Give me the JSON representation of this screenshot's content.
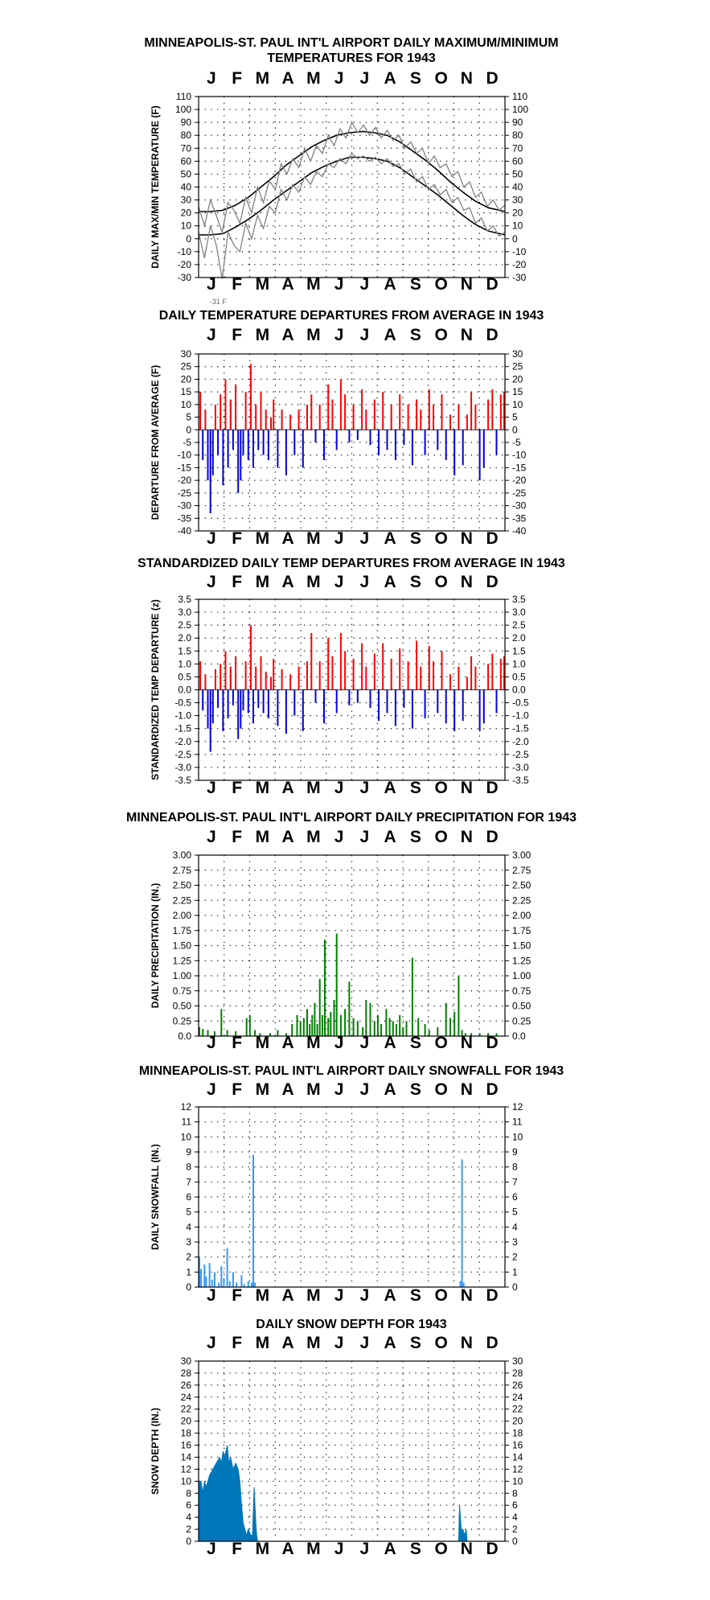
{
  "page": {
    "background": "#ffffff"
  },
  "colors": {
    "frame": "#000000",
    "grid_dot": "#000000",
    "maxmin_line": "#808080",
    "normal_line": "#000000",
    "positive_bar": "#ff0000",
    "negative_bar": "#0000dd",
    "precip_bar": "#008000",
    "snowfall_bar": "#3399ff",
    "snow_depth_fill": "#0077bb"
  },
  "month_labels": [
    "J",
    "F",
    "M",
    "A",
    "M",
    "J",
    "J",
    "A",
    "S",
    "O",
    "N",
    "D"
  ],
  "chart_data": [
    {
      "type": "line",
      "title": "MINNEAPOLIS-ST. PAUL INT'L AIRPORT DAILY MAXIMUM/MINIMUM TEMPERATURES FOR 1943",
      "ylabel": "DAILY MAX/MIN TEMPERATURE (F)",
      "ylim": [
        -30,
        110
      ],
      "yticks": [
        110,
        100,
        90,
        80,
        70,
        60,
        50,
        40,
        30,
        20,
        10,
        0,
        -10,
        -20,
        -30
      ],
      "annotation": "-31 F",
      "grid": true,
      "series": [
        {
          "style": "normal",
          "x": [
            1,
            15,
            30,
            45,
            60,
            75,
            90,
            105,
            120,
            135,
            150,
            165,
            180,
            196,
            210,
            225,
            240,
            255,
            270,
            285,
            300,
            315,
            330,
            345,
            365
          ],
          "values": [
            21,
            21,
            22,
            26,
            32,
            40,
            48,
            57,
            64,
            71,
            76,
            80,
            82,
            83,
            82,
            80,
            75,
            68,
            61,
            53,
            44,
            36,
            29,
            24,
            21
          ]
        },
        {
          "style": "normal",
          "x": [
            1,
            15,
            30,
            45,
            60,
            75,
            90,
            105,
            120,
            135,
            150,
            165,
            180,
            196,
            210,
            225,
            240,
            255,
            270,
            285,
            300,
            315,
            330,
            345,
            365
          ],
          "values": [
            3,
            3,
            4,
            9,
            15,
            22,
            30,
            37,
            44,
            51,
            56,
            60,
            63,
            63,
            62,
            60,
            55,
            48,
            41,
            34,
            26,
            18,
            11,
            6,
            3
          ]
        },
        {
          "style": "daily",
          "x": [
            1,
            8,
            15,
            22,
            29,
            36,
            43,
            50,
            57,
            64,
            71,
            78,
            85,
            92,
            99,
            106,
            113,
            120,
            127,
            134,
            141,
            148,
            155,
            162,
            169,
            176,
            183,
            190,
            197,
            204,
            211,
            218,
            225,
            232,
            239,
            246,
            253,
            260,
            267,
            274,
            281,
            288,
            295,
            302,
            309,
            316,
            323,
            330,
            337,
            344,
            351,
            358,
            365
          ],
          "values": [
            25,
            10,
            30,
            18,
            5,
            28,
            22,
            12,
            32,
            20,
            40,
            28,
            45,
            38,
            58,
            50,
            62,
            55,
            70,
            60,
            72,
            66,
            80,
            72,
            85,
            78,
            90,
            82,
            88,
            80,
            86,
            78,
            84,
            76,
            80,
            70,
            75,
            66,
            70,
            58,
            64,
            55,
            58,
            48,
            52,
            40,
            44,
            32,
            36,
            25,
            30,
            22,
            26
          ]
        },
        {
          "style": "daily",
          "x": [
            1,
            8,
            15,
            22,
            29,
            36,
            43,
            50,
            57,
            64,
            71,
            78,
            85,
            92,
            99,
            106,
            113,
            120,
            127,
            134,
            141,
            148,
            155,
            162,
            169,
            176,
            183,
            190,
            197,
            204,
            211,
            218,
            225,
            232,
            239,
            246,
            253,
            260,
            267,
            274,
            281,
            288,
            295,
            302,
            309,
            316,
            323,
            330,
            337,
            344,
            351,
            358,
            365
          ],
          "values": [
            5,
            -15,
            10,
            -5,
            -31,
            5,
            -5,
            -10,
            12,
            0,
            18,
            8,
            25,
            20,
            38,
            30,
            42,
            36,
            48,
            42,
            52,
            48,
            58,
            55,
            62,
            58,
            66,
            62,
            64,
            60,
            63,
            58,
            62,
            56,
            58,
            50,
            54,
            44,
            48,
            38,
            42,
            34,
            38,
            28,
            32,
            22,
            24,
            12,
            16,
            6,
            10,
            2,
            5
          ]
        }
      ]
    },
    {
      "type": "bar",
      "title": "DAILY TEMPERATURE DEPARTURES FROM AVERAGE IN 1943",
      "ylabel": "DEPARTURE FROM AVERAGE (F)",
      "ylim": [
        -40,
        30
      ],
      "yticks": [
        30,
        25,
        20,
        15,
        10,
        5,
        0,
        -5,
        -10,
        -15,
        -20,
        -25,
        -30,
        -35,
        -40
      ],
      "grid": true,
      "x": [
        3,
        6,
        9,
        12,
        15,
        18,
        21,
        24,
        27,
        30,
        33,
        36,
        39,
        42,
        45,
        48,
        51,
        54,
        57,
        60,
        63,
        66,
        69,
        72,
        75,
        78,
        81,
        84,
        87,
        90,
        95,
        100,
        105,
        110,
        115,
        120,
        125,
        130,
        135,
        140,
        145,
        150,
        155,
        160,
        165,
        170,
        175,
        180,
        185,
        190,
        195,
        200,
        205,
        210,
        215,
        220,
        225,
        230,
        235,
        240,
        245,
        250,
        255,
        260,
        265,
        270,
        275,
        280,
        285,
        290,
        295,
        300,
        305,
        310,
        315,
        320,
        325,
        330,
        335,
        340,
        345,
        350,
        355,
        360,
        364
      ],
      "values": [
        15,
        -12,
        8,
        -20,
        -33,
        -18,
        10,
        -10,
        14,
        -22,
        20,
        -15,
        12,
        -8,
        18,
        -25,
        -20,
        -10,
        15,
        -12,
        26,
        -15,
        10,
        -8,
        15,
        -10,
        8,
        -12,
        5,
        12,
        -15,
        8,
        -18,
        6,
        -10,
        8,
        -15,
        10,
        14,
        -5,
        10,
        -12,
        18,
        12,
        -8,
        20,
        14,
        -5,
        10,
        -4,
        16,
        8,
        -6,
        12,
        -10,
        15,
        -8,
        10,
        -12,
        14,
        -6,
        10,
        -14,
        12,
        8,
        -10,
        16,
        10,
        -8,
        14,
        -12,
        6,
        -18,
        10,
        -14,
        6,
        15,
        10,
        -20,
        -15,
        12,
        16,
        -10,
        14,
        15
      ]
    },
    {
      "type": "bar",
      "title": "STANDARDIZED DAILY TEMP DEPARTURES FROM AVERAGE IN 1943",
      "ylabel": "STANDARDIZED TEMP DEPARTURE (z)",
      "ylim": [
        -3.5,
        3.5
      ],
      "yticks": [
        "3.5",
        "3.0",
        "2.5",
        "2.0",
        "1.5",
        "1.0",
        "0.5",
        "0.0",
        "-0.5",
        "-1.0",
        "-1.5",
        "-2.0",
        "-2.5",
        "-3.0",
        "-3.5"
      ],
      "grid": true,
      "x": [
        3,
        6,
        9,
        12,
        15,
        18,
        21,
        24,
        27,
        30,
        33,
        36,
        39,
        42,
        45,
        48,
        51,
        54,
        57,
        60,
        63,
        66,
        69,
        72,
        75,
        78,
        81,
        84,
        87,
        90,
        95,
        100,
        105,
        110,
        115,
        120,
        125,
        130,
        135,
        140,
        145,
        150,
        155,
        160,
        165,
        170,
        175,
        180,
        185,
        190,
        195,
        200,
        205,
        210,
        215,
        220,
        225,
        230,
        235,
        240,
        245,
        250,
        255,
        260,
        265,
        270,
        275,
        280,
        285,
        290,
        295,
        300,
        305,
        310,
        315,
        320,
        325,
        330,
        335,
        340,
        345,
        350,
        355,
        360,
        364
      ],
      "values": [
        1.1,
        -0.8,
        0.6,
        -1.5,
        -2.4,
        -1.3,
        0.8,
        -0.7,
        1.0,
        -1.6,
        1.5,
        -1.1,
        0.9,
        -0.6,
        1.3,
        -1.9,
        -1.5,
        -0.8,
        1.1,
        -0.9,
        2.5,
        -1.3,
        0.9,
        -0.7,
        1.3,
        -0.9,
        0.7,
        -1.1,
        0.5,
        1.2,
        -1.4,
        0.8,
        -1.7,
        0.6,
        -1.0,
        0.9,
        -1.6,
        1.1,
        2.2,
        -0.5,
        1.1,
        -1.3,
        2.0,
        1.3,
        -0.9,
        2.2,
        1.5,
        -0.6,
        1.2,
        -0.5,
        1.8,
        0.9,
        -0.7,
        1.4,
        -1.2,
        1.8,
        -0.9,
        1.2,
        -1.4,
        1.6,
        -0.7,
        1.1,
        -1.5,
        1.9,
        0.9,
        -1.1,
        1.7,
        1.1,
        -0.9,
        1.5,
        -1.3,
        0.6,
        -1.6,
        0.9,
        -1.2,
        0.5,
        1.3,
        0.9,
        -1.6,
        -1.3,
        1.0,
        1.4,
        -0.9,
        1.2,
        1.3
      ]
    },
    {
      "type": "bar",
      "title": "MINNEAPOLIS-ST. PAUL INT'L AIRPORT DAILY PRECIPITATION FOR 1943",
      "ylabel": "DAILY PRECIPITATION (IN.)",
      "ylim": [
        0,
        3
      ],
      "yticks": [
        "3.00",
        "2.75",
        "2.50",
        "2.25",
        "2.00",
        "1.75",
        "1.50",
        "1.25",
        "1.00",
        "0.75",
        "0.50",
        "0.25",
        "0.0"
      ],
      "grid": true,
      "x": [
        2,
        6,
        12,
        20,
        28,
        35,
        45,
        58,
        62,
        68,
        74,
        86,
        95,
        105,
        112,
        118,
        122,
        126,
        130,
        133,
        136,
        139,
        142,
        145,
        148,
        151,
        155,
        158,
        162,
        165,
        170,
        175,
        180,
        185,
        190,
        196,
        200,
        205,
        210,
        214,
        218,
        224,
        228,
        232,
        236,
        240,
        244,
        248,
        255,
        262,
        270,
        275,
        285,
        295,
        300,
        305,
        310,
        314,
        318,
        325,
        335,
        345,
        355
      ],
      "values": [
        0.15,
        0.12,
        0.1,
        0.08,
        0.45,
        0.1,
        0.08,
        0.3,
        0.35,
        0.1,
        0.05,
        0.05,
        0.1,
        0.05,
        0.2,
        0.35,
        0.25,
        0.3,
        0.45,
        0.2,
        0.35,
        0.55,
        0.2,
        0.95,
        0.35,
        1.6,
        0.3,
        0.4,
        0.6,
        1.7,
        0.35,
        0.45,
        0.9,
        0.3,
        0.25,
        0.15,
        0.6,
        0.55,
        0.25,
        0.35,
        0.2,
        0.45,
        0.3,
        0.25,
        0.2,
        0.35,
        0.15,
        0.25,
        1.3,
        0.3,
        0.2,
        0.1,
        0.15,
        0.55,
        0.3,
        0.4,
        1.0,
        0.1,
        0.05,
        0.05,
        0.05,
        0.05,
        0.05
      ]
    },
    {
      "type": "bar",
      "title": "MINNEAPOLIS-ST. PAUL INT'L AIRPORT DAILY SNOWFALL FOR 1943",
      "ylabel": "DAILY SNOWFALL (IN.)",
      "ylim": [
        0,
        12
      ],
      "yticks": [
        12,
        11,
        10,
        9,
        8,
        7,
        6,
        5,
        4,
        3,
        2,
        1,
        0
      ],
      "grid": true,
      "x": [
        2,
        4,
        8,
        10,
        14,
        17,
        20,
        25,
        28,
        31,
        35,
        38,
        42,
        46,
        52,
        55,
        60,
        64,
        66,
        68,
        312,
        314,
        316
      ],
      "values": [
        2.0,
        1.2,
        1.5,
        0.7,
        1.6,
        0.5,
        1.0,
        0.3,
        1.4,
        0.6,
        2.6,
        0.4,
        1.0,
        0.3,
        0.8,
        0.2,
        0.4,
        0.3,
        8.8,
        0.3,
        0.4,
        8.5,
        0.3
      ]
    },
    {
      "type": "area",
      "title": "DAILY SNOW DEPTH FOR 1943",
      "ylabel": "SNOW DEPTH (IN.)",
      "ylim": [
        0,
        30
      ],
      "yticks": [
        30,
        28,
        26,
        24,
        22,
        20,
        18,
        16,
        14,
        12,
        10,
        8,
        6,
        4,
        2,
        0
      ],
      "grid": true,
      "x": [
        1,
        4,
        6,
        8,
        10,
        14,
        18,
        22,
        26,
        28,
        30,
        32,
        35,
        37,
        39,
        42,
        45,
        48,
        50,
        52,
        54,
        56,
        58,
        60,
        63,
        65,
        67,
        68,
        69,
        70,
        71,
        310,
        311,
        313,
        315,
        317,
        319,
        320
      ],
      "values": [
        10,
        10,
        8,
        10,
        9,
        11,
        12,
        13,
        14,
        13,
        15,
        14,
        16,
        13,
        14,
        12,
        13,
        12,
        10,
        6,
        3,
        2,
        1,
        2,
        1,
        1,
        9,
        6,
        3,
        1,
        0,
        0,
        6,
        2,
        2,
        1,
        2,
        0
      ]
    }
  ]
}
